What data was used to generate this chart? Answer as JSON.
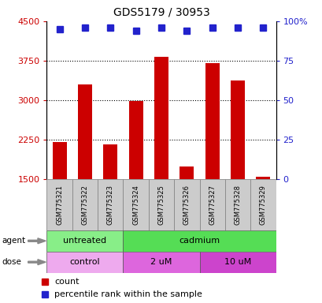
{
  "title": "GDS5179 / 30953",
  "samples": [
    "GSM775321",
    "GSM775322",
    "GSM775323",
    "GSM775324",
    "GSM775325",
    "GSM775326",
    "GSM775327",
    "GSM775328",
    "GSM775329"
  ],
  "counts": [
    2200,
    3300,
    2150,
    2980,
    3820,
    1730,
    3700,
    3370,
    1540
  ],
  "percentile_ranks": [
    95,
    96,
    96,
    94,
    96,
    94,
    96,
    96,
    96
  ],
  "bar_color": "#cc0000",
  "dot_color": "#2222cc",
  "y_min": 1500,
  "y_max": 4500,
  "y_ticks": [
    1500,
    2250,
    3000,
    3750,
    4500
  ],
  "y_right_ticks": [
    0,
    25,
    50,
    75,
    100
  ],
  "y_right_labels": [
    "0",
    "25",
    "50",
    "75",
    "100%"
  ],
  "agent_groups": [
    {
      "label": "untreated",
      "start": 0,
      "end": 3
    },
    {
      "label": "cadmium",
      "start": 3,
      "end": 9
    }
  ],
  "agent_colors": {
    "untreated": "#88ee88",
    "cadmium": "#55dd55"
  },
  "dose_groups": [
    {
      "label": "control",
      "start": 0,
      "end": 3
    },
    {
      "label": "2 uM",
      "start": 3,
      "end": 6
    },
    {
      "label": "10 uM",
      "start": 6,
      "end": 9
    }
  ],
  "dose_colors": {
    "control": "#eeaaee",
    "2 uM": "#dd66dd",
    "10 uM": "#cc44cc"
  },
  "sample_box_color": "#cccccc",
  "legend_count_color": "#cc0000",
  "legend_dot_color": "#2222cc",
  "background_color": "#ffffff"
}
